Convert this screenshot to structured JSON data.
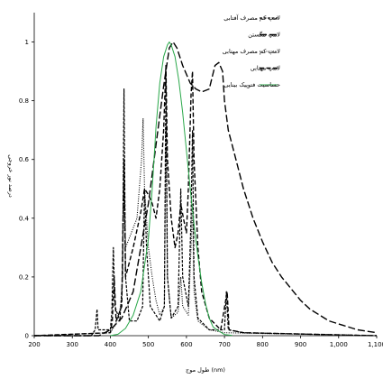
{
  "chart_data": {
    "type": "line",
    "title": "",
    "xlabel": "طول موج (nm)",
    "ylabel": "درصد نور خروجی",
    "xlim": [
      200,
      1100
    ],
    "ylim": [
      0,
      1.1
    ],
    "x_ticks": [
      200,
      300,
      400,
      500,
      600,
      700,
      800,
      900,
      1000,
      1100
    ],
    "x_tick_labels": [
      "200",
      "300",
      "400",
      "500",
      "600",
      "700",
      "800",
      "900",
      "1,000",
      "1,100"
    ],
    "y_ticks": [
      0,
      0.2,
      0.4,
      0.6,
      0.8,
      1
    ],
    "y_tick_labels": [
      "0",
      "0.2",
      "0.4",
      "0.6",
      "0.8",
      "1"
    ],
    "grid": false,
    "legend_position": "top-right",
    "series": [
      {
        "name": "لامپ کم مصرف آفتابی",
        "color": "#000000",
        "dash": "short-dash",
        "points": [
          [
            200,
            0.0
          ],
          [
            350,
            0.0
          ],
          [
            360,
            0.02
          ],
          [
            365,
            0.09
          ],
          [
            368,
            0.02
          ],
          [
            400,
            0.02
          ],
          [
            404,
            0.08
          ],
          [
            408,
            0.3
          ],
          [
            412,
            0.1
          ],
          [
            425,
            0.05
          ],
          [
            432,
            0.2
          ],
          [
            436,
            0.84
          ],
          [
            440,
            0.2
          ],
          [
            450,
            0.05
          ],
          [
            470,
            0.05
          ],
          [
            485,
            0.1
          ],
          [
            490,
            0.5
          ],
          [
            495,
            0.3
          ],
          [
            505,
            0.1
          ],
          [
            530,
            0.05
          ],
          [
            542,
            0.1
          ],
          [
            546,
            0.9
          ],
          [
            550,
            0.2
          ],
          [
            560,
            0.06
          ],
          [
            578,
            0.1
          ],
          [
            585,
            0.5
          ],
          [
            590,
            0.2
          ],
          [
            605,
            0.1
          ],
          [
            612,
            0.4
          ],
          [
            616,
            0.7
          ],
          [
            620,
            0.2
          ],
          [
            630,
            0.06
          ],
          [
            660,
            0.02
          ],
          [
            700,
            0.02
          ],
          [
            705,
            0.15
          ],
          [
            710,
            0.02
          ],
          [
            750,
            0.01
          ],
          [
            1100,
            0.0
          ]
        ]
      },
      {
        "name": "لامپ تنگستن",
        "color": "#000000",
        "dash": "long-dash",
        "points": [
          [
            200,
            0.0
          ],
          [
            370,
            0.0
          ],
          [
            400,
            0.02
          ],
          [
            430,
            0.06
          ],
          [
            460,
            0.15
          ],
          [
            480,
            0.3
          ],
          [
            500,
            0.45
          ],
          [
            520,
            0.65
          ],
          [
            540,
            0.85
          ],
          [
            555,
            0.98
          ],
          [
            565,
            1.0
          ],
          [
            575,
            0.98
          ],
          [
            590,
            0.92
          ],
          [
            610,
            0.86
          ],
          [
            625,
            0.84
          ],
          [
            640,
            0.83
          ],
          [
            660,
            0.84
          ],
          [
            675,
            0.92
          ],
          [
            685,
            0.93
          ],
          [
            695,
            0.9
          ],
          [
            700,
            0.8
          ],
          [
            710,
            0.7
          ],
          [
            730,
            0.6
          ],
          [
            750,
            0.5
          ],
          [
            775,
            0.4
          ],
          [
            800,
            0.32
          ],
          [
            825,
            0.25
          ],
          [
            850,
            0.2
          ],
          [
            875,
            0.16
          ],
          [
            900,
            0.12
          ],
          [
            925,
            0.09
          ],
          [
            950,
            0.07
          ],
          [
            975,
            0.05
          ],
          [
            1000,
            0.04
          ],
          [
            1050,
            0.02
          ],
          [
            1100,
            0.01
          ]
        ]
      },
      {
        "name": "لامپ کم مصرف مهتابی",
        "color": "#000000",
        "dash": "dotted",
        "points": [
          [
            200,
            0.0
          ],
          [
            400,
            0.01
          ],
          [
            410,
            0.03
          ],
          [
            420,
            0.06
          ],
          [
            430,
            0.12
          ],
          [
            436,
            0.5
          ],
          [
            440,
            0.3
          ],
          [
            455,
            0.35
          ],
          [
            470,
            0.4
          ],
          [
            482,
            0.6
          ],
          [
            486,
            0.74
          ],
          [
            490,
            0.5
          ],
          [
            500,
            0.3
          ],
          [
            510,
            0.2
          ],
          [
            520,
            0.12
          ],
          [
            530,
            0.07
          ],
          [
            542,
            0.1
          ],
          [
            546,
            0.72
          ],
          [
            550,
            0.2
          ],
          [
            560,
            0.06
          ],
          [
            578,
            0.08
          ],
          [
            585,
            0.2
          ],
          [
            590,
            0.1
          ],
          [
            605,
            0.07
          ],
          [
            612,
            0.3
          ],
          [
            616,
            0.45
          ],
          [
            620,
            0.15
          ],
          [
            630,
            0.05
          ],
          [
            660,
            0.02
          ],
          [
            700,
            0.01
          ],
          [
            1100,
            0.0
          ]
        ]
      },
      {
        "name": "لامپ مهتابی",
        "color": "#000000",
        "dash": "medium-dash",
        "points": [
          [
            200,
            0.0
          ],
          [
            400,
            0.01
          ],
          [
            405,
            0.05
          ],
          [
            410,
            0.2
          ],
          [
            415,
            0.05
          ],
          [
            430,
            0.1
          ],
          [
            436,
            0.6
          ],
          [
            440,
            0.2
          ],
          [
            460,
            0.3
          ],
          [
            480,
            0.42
          ],
          [
            490,
            0.5
          ],
          [
            500,
            0.48
          ],
          [
            510,
            0.45
          ],
          [
            520,
            0.4
          ],
          [
            530,
            0.5
          ],
          [
            540,
            0.7
          ],
          [
            546,
            0.92
          ],
          [
            550,
            0.6
          ],
          [
            560,
            0.4
          ],
          [
            570,
            0.3
          ],
          [
            578,
            0.35
          ],
          [
            585,
            0.45
          ],
          [
            592,
            0.4
          ],
          [
            600,
            0.35
          ],
          [
            605,
            0.5
          ],
          [
            612,
            0.82
          ],
          [
            616,
            0.9
          ],
          [
            620,
            0.6
          ],
          [
            630,
            0.3
          ],
          [
            640,
            0.15
          ],
          [
            660,
            0.06
          ],
          [
            690,
            0.02
          ],
          [
            707,
            0.15
          ],
          [
            712,
            0.02
          ],
          [
            750,
            0.01
          ],
          [
            1100,
            0.0
          ]
        ]
      },
      {
        "name": "حساسیت فتوپیک بینایی",
        "color": "#2aa84a",
        "dash": "solid",
        "points": [
          [
            400,
            0.0
          ],
          [
            420,
            0.005
          ],
          [
            440,
            0.025
          ],
          [
            460,
            0.07
          ],
          [
            480,
            0.15
          ],
          [
            500,
            0.33
          ],
          [
            510,
            0.5
          ],
          [
            520,
            0.71
          ],
          [
            530,
            0.86
          ],
          [
            540,
            0.95
          ],
          [
            550,
            0.99
          ],
          [
            555,
            1.0
          ],
          [
            560,
            0.99
          ],
          [
            570,
            0.95
          ],
          [
            580,
            0.87
          ],
          [
            590,
            0.76
          ],
          [
            600,
            0.63
          ],
          [
            610,
            0.5
          ],
          [
            620,
            0.38
          ],
          [
            630,
            0.27
          ],
          [
            640,
            0.18
          ],
          [
            650,
            0.11
          ],
          [
            660,
            0.06
          ],
          [
            670,
            0.03
          ],
          [
            680,
            0.02
          ],
          [
            700,
            0.004
          ],
          [
            720,
            0.001
          ]
        ]
      }
    ]
  }
}
